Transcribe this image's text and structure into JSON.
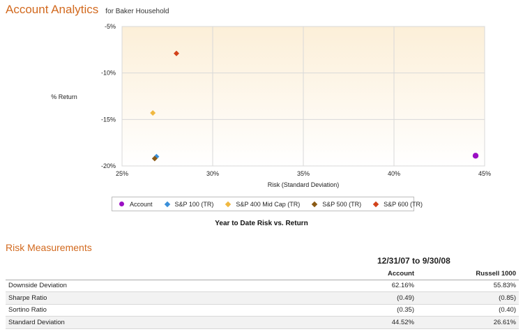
{
  "header": {
    "title": "Account Analytics",
    "subtitle": "for Baker Household"
  },
  "chart_data": {
    "type": "scatter",
    "title": "Year to Date Risk vs. Return",
    "xlabel": "Risk (Standard Deviation)",
    "ylabel": "% Return",
    "xlim": [
      25,
      45
    ],
    "ylim": [
      -20,
      -5
    ],
    "xticks": [
      "25%",
      "30%",
      "35%",
      "40%",
      "45%"
    ],
    "yticks": [
      "-5%",
      "-10%",
      "-15%",
      "-20%"
    ],
    "grid": true,
    "legend_position": "bottom",
    "series": [
      {
        "name": "Account",
        "marker": "circle",
        "color": "#9b0fc4",
        "x": 44.5,
        "y": -18.9
      },
      {
        "name": "S&P 100 (TR)",
        "marker": "diamond",
        "color": "#3a8fd9",
        "x": 26.9,
        "y": -19.0
      },
      {
        "name": "S&P 400 Mid Cap (TR)",
        "marker": "diamond",
        "color": "#f0b840",
        "x": 26.7,
        "y": -14.3
      },
      {
        "name": "S&P 500 (TR)",
        "marker": "diamond",
        "color": "#8b5a14",
        "x": 26.8,
        "y": -19.2
      },
      {
        "name": "S&P 600 (TR)",
        "marker": "diamond",
        "color": "#d2421a",
        "x": 28.0,
        "y": -7.9
      }
    ]
  },
  "risk": {
    "section_title": "Risk Measurements",
    "period": "12/31/07 to 9/30/08",
    "columns": [
      "",
      "Account",
      "Russell 1000"
    ],
    "rows": [
      {
        "label": "Downside Deviation",
        "account": "62.16%",
        "russell": "55.83%"
      },
      {
        "label": "Sharpe Ratio",
        "account": "(0.49)",
        "russell": "(0.85)"
      },
      {
        "label": "Sortino Ratio",
        "account": "(0.35)",
        "russell": "(0.40)"
      },
      {
        "label": "Standard Deviation",
        "account": "44.52%",
        "russell": "26.61%"
      }
    ]
  }
}
